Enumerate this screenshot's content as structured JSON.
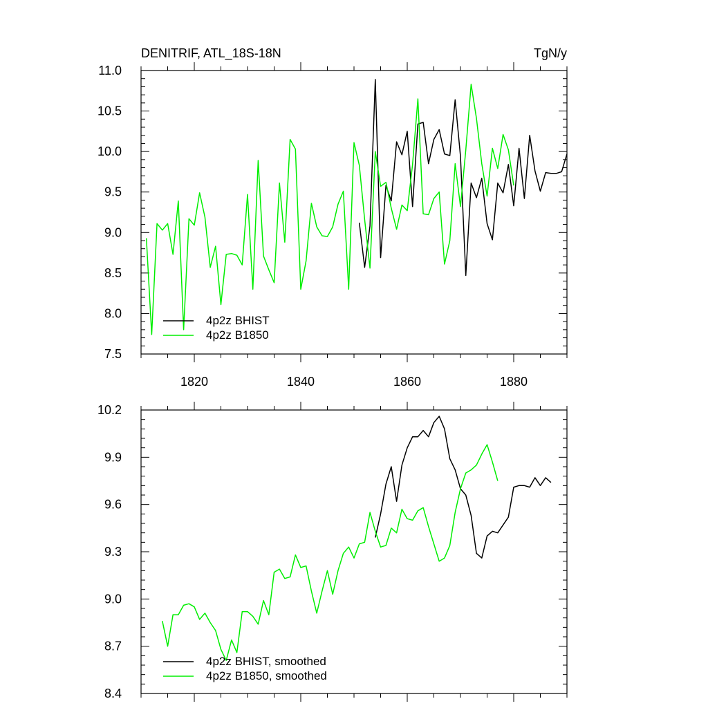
{
  "figure": {
    "title": "DENITRIF, ATL_18S-18N",
    "units": "TgN/y"
  },
  "colors": {
    "bhist": "#000000",
    "b1850": "#00ee00",
    "axis": "#000000",
    "background": "#ffffff"
  },
  "chart_data": [
    {
      "type": "line",
      "title": "DENITRIF, ATL_18S-18N",
      "units": "TgN/y",
      "xlabel": "",
      "ylabel": "",
      "xlim": [
        1810,
        1890
      ],
      "ylim": [
        7.5,
        11.0
      ],
      "xticks": [
        1820,
        1840,
        1860,
        1880
      ],
      "xtick_labels": [
        "1820",
        "1840",
        "1860",
        "1880"
      ],
      "yticks": [
        7.5,
        8.0,
        8.5,
        9.0,
        9.5,
        10.0,
        10.5,
        11.0
      ],
      "ytick_labels": [
        "7.5",
        "8.0",
        "8.5",
        "9.0",
        "9.5",
        "10.0",
        "10.5",
        "11.0"
      ],
      "legend": "bottom-left",
      "series": [
        {
          "name": "4p2z BHIST",
          "color": "#000000",
          "x": [
            1851,
            1852,
            1853,
            1854,
            1855,
            1856,
            1857,
            1858,
            1859,
            1860,
            1861,
            1862,
            1863,
            1864,
            1865,
            1866,
            1867,
            1868,
            1869,
            1870,
            1871,
            1872,
            1873,
            1874,
            1875,
            1876,
            1877,
            1878,
            1879,
            1880,
            1881,
            1882,
            1883,
            1884,
            1885,
            1886,
            1887,
            1888,
            1889,
            1890
          ],
          "values": [
            9.12,
            8.57,
            9.08,
            10.89,
            8.69,
            9.58,
            9.39,
            10.12,
            9.96,
            10.25,
            9.32,
            10.34,
            10.36,
            9.85,
            10.15,
            10.27,
            9.97,
            9.95,
            10.64,
            9.94,
            8.47,
            9.61,
            9.43,
            9.67,
            9.11,
            8.91,
            9.61,
            9.49,
            9.84,
            9.33,
            10.04,
            9.42,
            10.2,
            9.76,
            9.51,
            9.74,
            9.73,
            9.73,
            9.75,
            9.97
          ]
        },
        {
          "name": "4p2z B1850",
          "color": "#00ee00",
          "x": [
            1811,
            1812,
            1813,
            1814,
            1815,
            1816,
            1817,
            1818,
            1819,
            1820,
            1821,
            1822,
            1823,
            1824,
            1825,
            1826,
            1827,
            1828,
            1829,
            1830,
            1831,
            1832,
            1833,
            1834,
            1835,
            1836,
            1837,
            1838,
            1839,
            1840,
            1841,
            1842,
            1843,
            1844,
            1845,
            1846,
            1847,
            1848,
            1849,
            1850,
            1851,
            1852,
            1853,
            1854,
            1855,
            1856,
            1857,
            1858,
            1859,
            1860,
            1861,
            1862,
            1863,
            1864,
            1865,
            1866,
            1867,
            1868,
            1869,
            1870,
            1871,
            1872,
            1873,
            1874,
            1875,
            1876,
            1877,
            1878,
            1879,
            1880
          ],
          "values": [
            8.93,
            7.74,
            9.11,
            9.03,
            9.11,
            8.73,
            9.39,
            7.8,
            9.17,
            9.09,
            9.49,
            9.19,
            8.57,
            8.83,
            8.11,
            8.73,
            8.74,
            8.72,
            8.6,
            9.47,
            8.3,
            9.89,
            8.71,
            8.54,
            8.38,
            9.61,
            8.88,
            10.15,
            10.03,
            8.3,
            8.65,
            9.36,
            9.07,
            8.96,
            8.95,
            9.07,
            9.35,
            9.51,
            8.3,
            10.11,
            9.83,
            9.16,
            8.56,
            10.0,
            9.57,
            9.62,
            9.3,
            9.04,
            9.34,
            9.27,
            9.84,
            10.65,
            9.23,
            9.22,
            9.42,
            9.5,
            8.61,
            8.9,
            9.85,
            9.32,
            10.02,
            10.83,
            10.41,
            9.85,
            9.45,
            10.04,
            9.79,
            10.21,
            10.02,
            9.58
          ]
        }
      ]
    },
    {
      "type": "line",
      "title": "",
      "xlabel": "",
      "ylabel": "",
      "xlim": [
        1810,
        1890
      ],
      "ylim": [
        8.4,
        10.2
      ],
      "xticks": [
        1820,
        1840,
        1860,
        1880
      ],
      "yticks": [
        8.4,
        8.7,
        9.0,
        9.3,
        9.6,
        9.9,
        10.2
      ],
      "ytick_labels": [
        "8.4",
        "8.7",
        "9.0",
        "9.3",
        "9.6",
        "9.9",
        "10.2"
      ],
      "legend": "bottom-left",
      "series": [
        {
          "name": "4p2z BHIST, smoothed",
          "color": "#000000",
          "x": [
            1854,
            1855,
            1856,
            1857,
            1858,
            1859,
            1860,
            1861,
            1862,
            1863,
            1864,
            1865,
            1866,
            1867,
            1868,
            1869,
            1870,
            1871,
            1872,
            1873,
            1874,
            1875,
            1876,
            1877,
            1878,
            1879,
            1880,
            1881,
            1882,
            1883,
            1884,
            1885,
            1886,
            1887
          ],
          "values": [
            9.39,
            9.54,
            9.73,
            9.84,
            9.62,
            9.85,
            9.96,
            10.03,
            10.03,
            10.07,
            10.03,
            10.12,
            10.16,
            10.08,
            9.89,
            9.82,
            9.7,
            9.66,
            9.53,
            9.29,
            9.26,
            9.4,
            9.43,
            9.42,
            9.47,
            9.52,
            9.71,
            9.72,
            9.72,
            9.71,
            9.77,
            9.72,
            9.77,
            9.74
          ]
        },
        {
          "name": "4p2z B1850, smoothed",
          "color": "#00ee00",
          "x": [
            1814,
            1815,
            1816,
            1817,
            1818,
            1819,
            1820,
            1821,
            1822,
            1823,
            1824,
            1825,
            1826,
            1827,
            1828,
            1829,
            1830,
            1831,
            1832,
            1833,
            1834,
            1835,
            1836,
            1837,
            1838,
            1839,
            1840,
            1841,
            1842,
            1843,
            1844,
            1845,
            1846,
            1847,
            1848,
            1849,
            1850,
            1851,
            1852,
            1853,
            1854,
            1855,
            1856,
            1857,
            1858,
            1859,
            1860,
            1861,
            1862,
            1863,
            1864,
            1865,
            1866,
            1867,
            1868,
            1869,
            1870,
            1871,
            1872,
            1873,
            1874,
            1875,
            1876,
            1877
          ],
          "values": [
            8.86,
            8.7,
            8.9,
            8.9,
            8.96,
            8.97,
            8.95,
            8.87,
            8.91,
            8.85,
            8.8,
            8.68,
            8.61,
            8.74,
            8.66,
            8.92,
            8.92,
            8.89,
            8.84,
            8.99,
            8.9,
            9.17,
            9.19,
            9.13,
            9.14,
            9.28,
            9.2,
            9.21,
            9.05,
            8.91,
            9.05,
            9.18,
            9.03,
            9.18,
            9.29,
            9.33,
            9.26,
            9.35,
            9.36,
            9.55,
            9.43,
            9.33,
            9.34,
            9.45,
            9.42,
            9.57,
            9.51,
            9.5,
            9.56,
            9.58,
            9.46,
            9.35,
            9.24,
            9.26,
            9.34,
            9.55,
            9.7,
            9.8,
            9.82,
            9.85,
            9.92,
            9.98,
            9.87,
            9.75
          ]
        }
      ]
    }
  ]
}
